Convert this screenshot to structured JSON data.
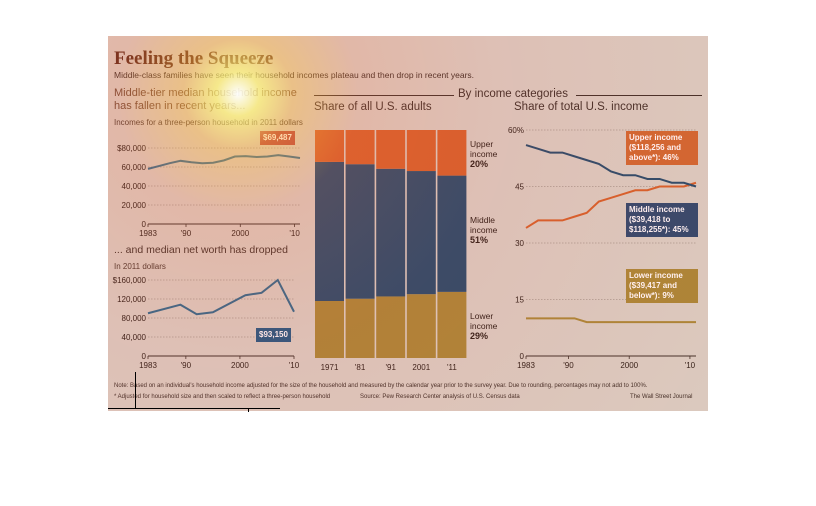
{
  "header": {
    "title": "Feeling the Squeeze",
    "subtitle": "Middle-class families have seen their household incomes plateau and then drop in recent years."
  },
  "income_panel": {
    "heading": "Middle-tier median household income has fallen in recent years...",
    "subheading": "Incomes for a three-person household in 2011 dollars",
    "callout": "$69,487"
  },
  "networth_panel": {
    "heading": "... and median net worth has dropped",
    "subheading": "In 2011 dollars",
    "callout": "$93,150"
  },
  "categories_header": "By income categories",
  "share_adults_panel": {
    "heading": "Share of all U.S. adults"
  },
  "share_income_panel": {
    "heading": "Share of total U.S. income"
  },
  "share_adults_labels": {
    "upper": [
      "Upper",
      "income",
      "20%"
    ],
    "middle": [
      "Middle",
      "income",
      "51%"
    ],
    "lower": [
      "Lower",
      "income",
      "29%"
    ]
  },
  "share_income_callouts": {
    "upper": "Upper income ($118,256 and above*): 46%",
    "middle": "Middle income ($39,418 to $118,255*): 45%",
    "lower": "Lower income ($39,417 and below*): 9%"
  },
  "notes": {
    "line1": "Note: Based on an individual's household income adjusted for the size of the household and measured by the calendar year prior to the survey year. Due to rounding, percentages may not add to 100%.",
    "line2": "* Adjusted for household size and then scaled to reflect a three-person household",
    "source": "Source: Pew Research Center analysis of U.S. Census data",
    "credit": "The Wall Street Journal"
  },
  "colors": {
    "upper": "#d4632b",
    "middle": "#234d6c",
    "lower": "#a88a37",
    "line": "#2a6b8e",
    "panel": "#d9d2c6",
    "callout_red": "#b43a3a",
    "callout_blue": "#1f5a84",
    "callout_orange": "#cf6a31",
    "callout_navy": "#2c4a6e",
    "callout_gold": "#a88a37"
  },
  "chart_data": [
    {
      "type": "line",
      "x": [
        1983,
        1985,
        1987,
        1989,
        1991,
        1993,
        1995,
        1997,
        1999,
        2001,
        2003,
        2005,
        2007,
        2009,
        2011
      ],
      "series": [
        {
          "values": [
            58000,
            61000,
            64000,
            66500,
            65000,
            64000,
            64500,
            67000,
            71000,
            71500,
            70500,
            71000,
            72500,
            71000,
            69487
          ]
        }
      ],
      "xticks": [
        "1983",
        "'90",
        "2000",
        "'10"
      ],
      "yticks": [
        "$80,000",
        "60,000",
        "40,000",
        "20,000",
        "0"
      ],
      "ylim": [
        0,
        80000
      ],
      "xlim": [
        1983,
        2011
      ]
    },
    {
      "type": "line",
      "x": [
        1983,
        1989,
        1992,
        1995,
        2001,
        2004,
        2007,
        2010
      ],
      "series": [
        {
          "values": [
            90000,
            108000,
            88000,
            92000,
            128000,
            133000,
            160000,
            93150
          ]
        }
      ],
      "xticks": [
        "1983",
        "'90",
        "2000",
        "'10"
      ],
      "yticks": [
        "$160,000",
        "120,000",
        "80,000",
        "40,000",
        "0"
      ],
      "ylim": [
        0,
        160000
      ],
      "xlim": [
        1983,
        2010
      ]
    },
    {
      "type": "bar",
      "categories": [
        "1971",
        "'81",
        "'91",
        "2001",
        "'11"
      ],
      "series": [
        {
          "name": "Lower income",
          "values": [
            25,
            26,
            27,
            28,
            29
          ]
        },
        {
          "name": "Middle income",
          "values": [
            61,
            59,
            56,
            54,
            51
          ]
        },
        {
          "name": "Upper income",
          "values": [
            14,
            15,
            17,
            18,
            20
          ]
        }
      ],
      "ylim": [
        0,
        100
      ]
    },
    {
      "type": "line",
      "x": [
        1983,
        1985,
        1987,
        1989,
        1991,
        1993,
        1995,
        1997,
        1999,
        2001,
        2003,
        2005,
        2007,
        2009,
        2011
      ],
      "series": [
        {
          "name": "Upper income",
          "values": [
            34,
            36,
            36,
            36,
            37,
            38,
            41,
            42,
            43,
            44,
            44,
            45,
            45,
            45,
            46
          ]
        },
        {
          "name": "Middle income",
          "values": [
            56,
            55,
            54,
            54,
            53,
            52,
            51,
            49,
            48,
            48,
            47,
            47,
            46,
            46,
            45
          ]
        },
        {
          "name": "Lower income",
          "values": [
            10,
            10,
            10,
            10,
            10,
            9,
            9,
            9,
            9,
            9,
            9,
            9,
            9,
            9,
            9
          ]
        }
      ],
      "xticks": [
        "1983",
        "'90",
        "2000",
        "'10"
      ],
      "yticks": [
        "60%",
        "45",
        "30",
        "15",
        "0"
      ],
      "ylim": [
        0,
        60
      ],
      "xlim": [
        1983,
        2011
      ]
    }
  ]
}
